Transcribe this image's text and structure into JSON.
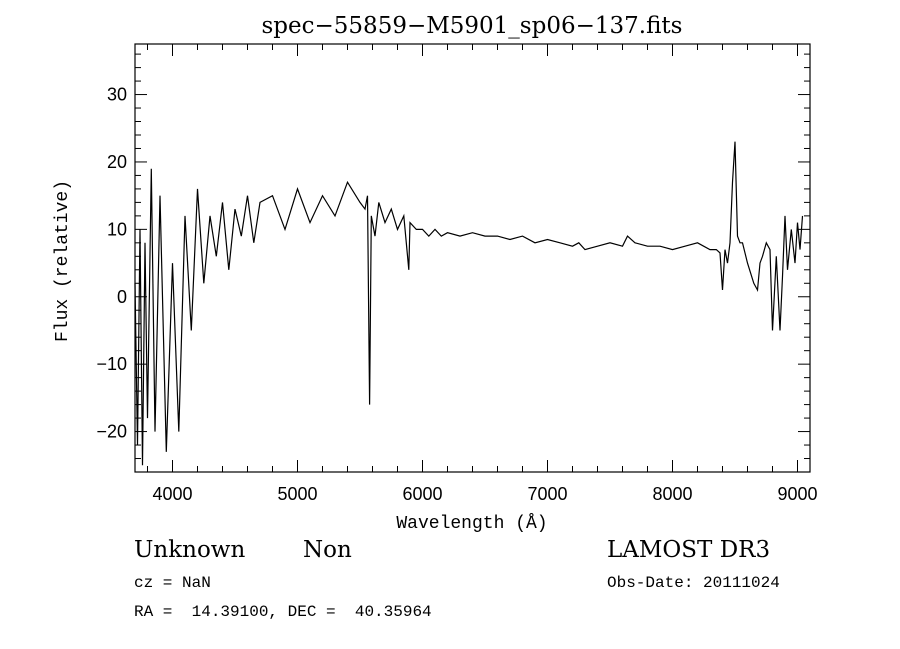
{
  "chart_data": {
    "type": "line",
    "title": "spec−55859−M5901_sp06−137.fits",
    "xlabel": "Wavelength (Å)",
    "ylabel": "Flux (relative)",
    "xlim": [
      3700,
      9100
    ],
    "ylim": [
      -26,
      37.5
    ],
    "xticks": [
      4000,
      5000,
      6000,
      7000,
      8000,
      9000
    ],
    "yticks": [
      -20,
      -10,
      0,
      10,
      20,
      30
    ],
    "ytick_labels": [
      "−20",
      "−10",
      "0",
      "10",
      "20",
      "30"
    ],
    "grid": false,
    "series": [
      {
        "x": [
          3700,
          3720,
          3740,
          3760,
          3780,
          3800,
          3830,
          3860,
          3900,
          3950,
          4000,
          4050,
          4100,
          4150,
          4200,
          4250,
          4300,
          4350,
          4400,
          4450,
          4500,
          4550,
          4600,
          4650,
          4700,
          4800,
          4900,
          5000,
          5100,
          5200,
          5300,
          5400,
          5500,
          5540,
          5560,
          5577,
          5590,
          5620,
          5650,
          5700,
          5750,
          5800,
          5850,
          5890,
          5900,
          5950,
          6000,
          6050,
          6100,
          6150,
          6200,
          6300,
          6400,
          6500,
          6600,
          6700,
          6800,
          6900,
          7000,
          7100,
          7200,
          7250,
          7300,
          7400,
          7500,
          7600,
          7640,
          7700,
          7800,
          7900,
          8000,
          8100,
          8200,
          8300,
          8350,
          8380,
          8400,
          8420,
          8440,
          8460,
          8480,
          8500,
          8520,
          8540,
          8560,
          8600,
          8650,
          8680,
          8700,
          8720,
          8750,
          8780,
          8800,
          8830,
          8860,
          8880,
          8900,
          8920,
          8950,
          8980,
          9000,
          9020,
          9040
        ],
        "y": [
          2,
          -22,
          10,
          -25,
          8,
          -18,
          19,
          -20,
          15,
          -23,
          5,
          -20,
          12,
          -5,
          16,
          2,
          12,
          6,
          14,
          4,
          13,
          9,
          15,
          8,
          14,
          15,
          10,
          16,
          11,
          15,
          12,
          17,
          14,
          13,
          15,
          -16,
          12,
          9,
          14,
          11,
          13,
          10,
          12,
          4,
          11,
          10,
          10,
          9,
          10,
          9,
          9.5,
          9,
          9.5,
          9,
          9,
          8.5,
          9,
          8,
          8.5,
          8,
          7.5,
          8,
          7,
          7.5,
          8,
          7.5,
          9,
          8,
          7.5,
          7.5,
          7,
          7.5,
          8,
          7,
          7,
          6.5,
          1,
          7,
          5,
          8,
          17,
          23,
          9,
          8,
          8,
          5,
          2,
          1,
          5,
          6,
          8,
          7,
          -5,
          6,
          -5,
          3,
          12,
          4,
          10,
          5,
          11,
          7,
          12
        ]
      }
    ]
  },
  "info": {
    "object": "Unknown",
    "subclass": "Non",
    "survey": "LAMOST DR3",
    "cz": "cz = NaN",
    "obs_date": "Obs-Date: 20111024",
    "radec": "RA =  14.39100, DEC =  40.35964"
  }
}
